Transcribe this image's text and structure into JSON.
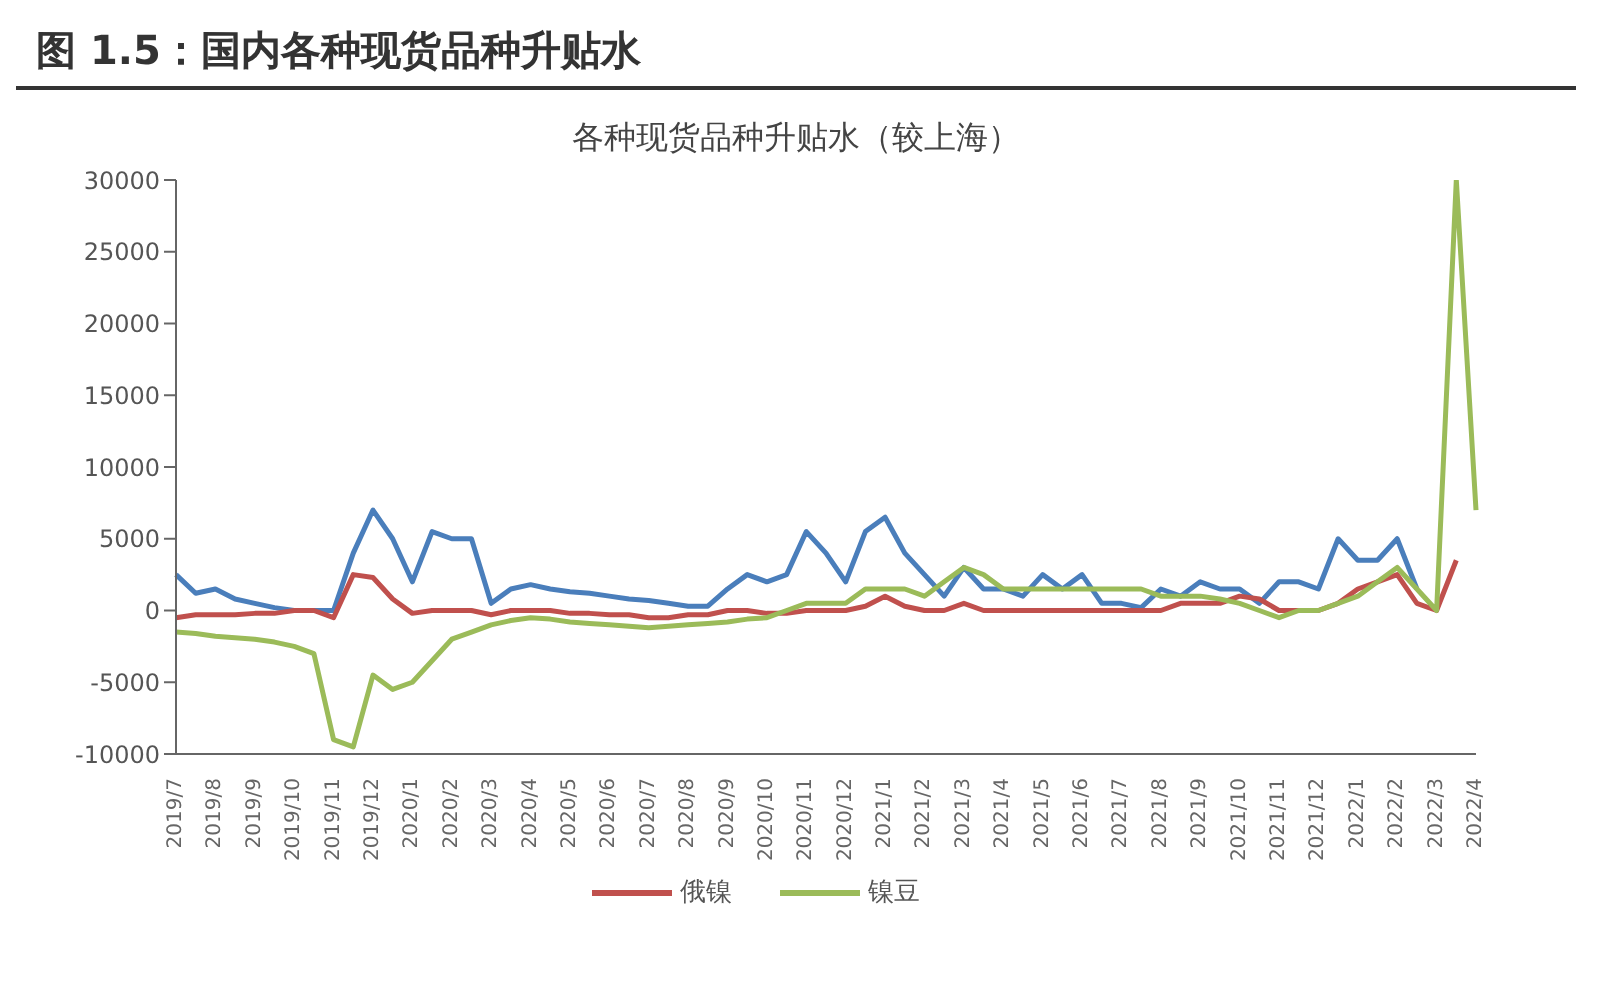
{
  "chart_data": {
    "type": "line",
    "title": "图 1.5：国内各种现货品种升贴水",
    "subtitle": "各种现货品种升贴水（较上海）",
    "categories": [
      "2019/7",
      null,
      "2019/8",
      null,
      "2019/9",
      null,
      "2019/10",
      null,
      "2019/11",
      null,
      "2019/12",
      null,
      "2020/1",
      null,
      "2020/2",
      null,
      "2020/3",
      null,
      "2020/4",
      null,
      "2020/5",
      null,
      "2020/6",
      null,
      "2020/7",
      null,
      "2020/8",
      null,
      "2020/9",
      null,
      "2020/10",
      null,
      "2020/11",
      null,
      "2020/12",
      null,
      "2021/1",
      null,
      "2021/2",
      null,
      "2021/3",
      null,
      "2021/4",
      null,
      "2021/5",
      null,
      "2021/6",
      null,
      "2021/7",
      null,
      "2021/8",
      null,
      "2021/9",
      null,
      "2021/10",
      null,
      "2021/11",
      null,
      "2021/12",
      null,
      "2022/1",
      null,
      "2022/2",
      null,
      "2022/3",
      null,
      "2022/4"
    ],
    "series": [
      {
        "color": "#4a7ebb",
        "values": [
          2500,
          1200,
          1500,
          800,
          500,
          200,
          0,
          0,
          0,
          4000,
          7000,
          5000,
          2000,
          5500,
          5000,
          5000,
          500,
          1500,
          1800,
          1500,
          1300,
          1200,
          1000,
          800,
          700,
          500,
          300,
          300,
          1500,
          2500,
          2000,
          2500,
          5500,
          4000,
          2000,
          5500,
          6500,
          4000,
          2500,
          1000,
          3000,
          1500,
          1500,
          1000,
          2500,
          1500,
          2500,
          500,
          500,
          200,
          1500,
          1000,
          2000,
          1500,
          1500,
          500,
          2000,
          2000,
          1500,
          5000,
          3500,
          3500,
          5000,
          1500,
          null,
          null,
          null
        ]
      },
      {
        "name": "俄镍",
        "color": "#c0504d",
        "values": [
          -500,
          -300,
          -300,
          -300,
          -200,
          -200,
          0,
          0,
          -500,
          2500,
          2300,
          800,
          -200,
          0,
          0,
          0,
          -300,
          0,
          0,
          0,
          -200,
          -200,
          -300,
          -300,
          -500,
          -500,
          -300,
          -300,
          0,
          0,
          -200,
          -200,
          0,
          0,
          0,
          300,
          1000,
          300,
          0,
          0,
          500,
          0,
          0,
          0,
          0,
          0,
          0,
          0,
          0,
          0,
          0,
          500,
          500,
          500,
          1000,
          800,
          0,
          0,
          0,
          500,
          1500,
          2000,
          2500,
          500,
          0,
          3500,
          null
        ]
      },
      {
        "name": "镍豆",
        "color": "#9bbb59",
        "values": [
          -1500,
          -1600,
          -1800,
          -1900,
          -2000,
          -2200,
          -2500,
          -3000,
          -9000,
          -9500,
          -4500,
          -5500,
          -5000,
          -3500,
          -2000,
          -1500,
          -1000,
          -700,
          -500,
          -600,
          -800,
          -900,
          -1000,
          -1100,
          -1200,
          -1100,
          -1000,
          -900,
          -800,
          -600,
          -500,
          0,
          500,
          500,
          500,
          1500,
          1500,
          1500,
          1000,
          2000,
          3000,
          2500,
          1500,
          1500,
          1500,
          1500,
          1500,
          1500,
          1500,
          1500,
          1000,
          1000,
          1000,
          800,
          500,
          0,
          -500,
          0,
          0,
          500,
          1000,
          2000,
          3000,
          1500,
          0,
          30000,
          7000
        ]
      }
    ],
    "ylim": [
      -10000,
      30000
    ],
    "yticks": [
      -10000,
      -5000,
      0,
      5000,
      10000,
      15000,
      20000,
      25000,
      30000
    ],
    "grid": false,
    "legend": "bottom",
    "marker": "none",
    "line_style": "solid"
  }
}
